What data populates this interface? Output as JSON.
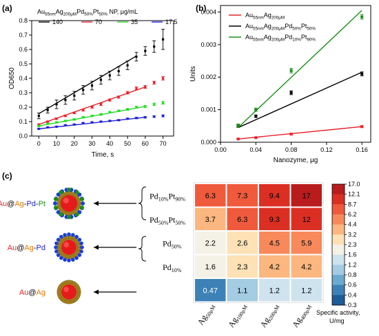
{
  "panels": {
    "a": {
      "label": "(a)"
    },
    "b": {
      "label": "(b)"
    },
    "c": {
      "label": "(c)"
    }
  },
  "colors": {
    "black": "#000000",
    "red": "#e8222a",
    "green": "#22dd22",
    "blue": "#1f1fd6",
    "dark_green": "#1a8f1a"
  },
  "chart_data": [
    {
      "type": "scatter",
      "panel": "a",
      "legend_title": {
        "base": "Au",
        "sub1": "55nm",
        "mid1": "Ag",
        "sub2": "200μM",
        "mid2": "Pd",
        "sub3": "50%",
        "mid3": "Pt",
        "sub4": "50%",
        "tail": " NP, μg/mL"
      },
      "xlabel": "Time, s",
      "ylabel": "OD650",
      "xlim": [
        -4,
        76
      ],
      "ylim": [
        0,
        0.8
      ],
      "xticks": [
        0,
        10,
        20,
        30,
        40,
        50,
        60,
        70
      ],
      "yticks": [
        0.0,
        0.1,
        0.2,
        0.3,
        0.4,
        0.5,
        0.6,
        0.7,
        0.8
      ],
      "ytick_labels": [
        "0.0",
        "0.1",
        "0.2",
        "0.3",
        "0.4",
        "0.5",
        "0.6",
        "0.7",
        "0.8"
      ],
      "series": [
        {
          "name": "140",
          "color": "#000000",
          "x": [
            0,
            5,
            10,
            15,
            20,
            25,
            30,
            35,
            40,
            45,
            50,
            55,
            60,
            65,
            70
          ],
          "y": [
            0.14,
            0.18,
            0.22,
            0.25,
            0.28,
            0.32,
            0.35,
            0.39,
            0.42,
            0.45,
            0.49,
            0.55,
            0.59,
            0.62,
            0.67
          ],
          "err": [
            0.02,
            0.02,
            0.03,
            0.03,
            0.03,
            0.03,
            0.03,
            0.03,
            0.03,
            0.03,
            0.03,
            0.03,
            0.03,
            0.04,
            0.07
          ],
          "fit": [
            [
              0,
              0.155
            ],
            [
              55,
              0.555
            ]
          ]
        },
        {
          "name": "70",
          "color": "#e8222a",
          "x": [
            0,
            5,
            10,
            15,
            20,
            25,
            30,
            35,
            40,
            45,
            50,
            55,
            60,
            65,
            70
          ],
          "y": [
            0.08,
            0.1,
            0.12,
            0.14,
            0.16,
            0.18,
            0.2,
            0.22,
            0.25,
            0.27,
            0.3,
            0.33,
            0.34,
            0.37,
            0.4
          ],
          "err": [
            0.005,
            0.005,
            0.006,
            0.006,
            0.006,
            0.007,
            0.007,
            0.008,
            0.008,
            0.008,
            0.009,
            0.01,
            0.01,
            0.01,
            0.012
          ],
          "fit": [
            [
              0,
              0.08
            ],
            [
              60,
              0.34
            ]
          ]
        },
        {
          "name": "35",
          "color": "#22dd22",
          "x": [
            0,
            5,
            10,
            15,
            20,
            25,
            30,
            35,
            40,
            45,
            50,
            55,
            60,
            65,
            70
          ],
          "y": [
            0.07,
            0.085,
            0.095,
            0.105,
            0.115,
            0.13,
            0.14,
            0.15,
            0.165,
            0.175,
            0.185,
            0.2,
            0.205,
            0.22,
            0.23
          ],
          "err": [
            0.004,
            0.004,
            0.004,
            0.005,
            0.005,
            0.005,
            0.005,
            0.006,
            0.006,
            0.006,
            0.007,
            0.007,
            0.007,
            0.008,
            0.009
          ],
          "fit": [
            [
              0,
              0.07
            ],
            [
              60,
              0.205
            ]
          ]
        },
        {
          "name": "17.5",
          "color": "#1f1fd6",
          "x": [
            0,
            5,
            10,
            15,
            20,
            25,
            30,
            35,
            40,
            45,
            50,
            55,
            60,
            65,
            70
          ],
          "y": [
            0.05,
            0.06,
            0.065,
            0.075,
            0.08,
            0.09,
            0.095,
            0.1,
            0.105,
            0.11,
            0.12,
            0.125,
            0.13,
            0.135,
            0.14
          ],
          "err": [
            0.003,
            0.003,
            0.003,
            0.003,
            0.003,
            0.004,
            0.004,
            0.004,
            0.004,
            0.004,
            0.004,
            0.005,
            0.005,
            0.006,
            0.007
          ],
          "fit": [
            [
              0,
              0.05
            ],
            [
              60,
              0.13
            ]
          ]
        }
      ]
    },
    {
      "type": "scatter",
      "panel": "b",
      "xlabel": "Nanozyme, μg",
      "ylabel": "Units",
      "xlim": [
        0,
        0.17
      ],
      "ylim": [
        0,
        0.0042
      ],
      "xticks": [
        0.0,
        0.04,
        0.08,
        0.12,
        0.16
      ],
      "xtick_labels": [
        "0.00",
        "0.04",
        "0.08",
        "0.12",
        "0.16"
      ],
      "yticks": [
        0.0,
        0.001,
        0.002,
        0.003,
        0.004
      ],
      "ytick_labels": [
        "0.000",
        "0.001",
        "0.002",
        "0.003",
        "0.004"
      ],
      "legend_placement": "top-left",
      "series": [
        {
          "name": {
            "base": "Au",
            "sub1": "55nm",
            "mid1": "Ag",
            "sub2": "200μM",
            "mid2": "",
            "sub3": "",
            "mid3": "",
            "sub4": ""
          },
          "color": "#e8222a",
          "x": [
            0.02,
            0.04,
            0.08,
            0.16
          ],
          "y": [
            0.0001,
            0.00014,
            0.00025,
            0.00048
          ],
          "err": [
            1e-05,
            1e-05,
            2e-05,
            3e-05
          ],
          "fit": [
            [
              0.02,
              0.0001
            ],
            [
              0.16,
              0.00048
            ]
          ]
        },
        {
          "name": {
            "base": "Au",
            "sub1": "55nm",
            "mid1": "Ag",
            "sub2": "200μM",
            "mid2": "Pd",
            "sub3": "50%",
            "mid3": "Pt",
            "sub4": "50%"
          },
          "color": "#000000",
          "x": [
            0.02,
            0.04,
            0.08,
            0.16
          ],
          "y": [
            0.0005,
            0.0008,
            0.00152,
            0.0021
          ],
          "err": [
            4e-05,
            4e-05,
            6e-05,
            6e-05
          ],
          "fit": [
            [
              0.02,
              0.00045
            ],
            [
              0.16,
              0.00215
            ]
          ]
        },
        {
          "name": {
            "base": "Au",
            "sub1": "55nm",
            "mid1": "Ag",
            "sub2": "200μM",
            "mid2": "Pd",
            "sub3": "10%",
            "mid3": "Pt",
            "sub4": "90%"
          },
          "color": "#1a8f1a",
          "x": [
            0.02,
            0.04,
            0.08,
            0.16
          ],
          "y": [
            0.00052,
            0.001,
            0.0022,
            0.00385
          ],
          "err": [
            4e-05,
            5e-05,
            7e-05,
            7e-05
          ],
          "fit": [
            [
              0.02,
              0.00045
            ],
            [
              0.16,
              0.00405
            ]
          ]
        }
      ]
    },
    {
      "type": "heatmap",
      "panel": "c",
      "row_labels": [
        {
          "base": "Pd",
          "sub": "10%",
          "base2": "Pt",
          "sub2": "90%"
        },
        {
          "base": "Pd",
          "sub": "50%",
          "base2": "Pt",
          "sub2": "50%"
        },
        {
          "base": "Pd",
          "sub": "50%",
          "base2": "",
          "sub2": ""
        },
        {
          "base": "Pd",
          "sub": "10%",
          "base2": "",
          "sub2": ""
        },
        {
          "base": "",
          "sub": "",
          "base2": "",
          "sub2": ""
        }
      ],
      "col_labels": [
        {
          "base": "Ag",
          "sub": "50μM"
        },
        {
          "base": "Ag",
          "sub": "100μM"
        },
        {
          "base": "Ag",
          "sub": "200μM"
        },
        {
          "base": "Ag",
          "sub": "400μM"
        }
      ],
      "values": [
        [
          "6.3",
          "7.3",
          "9.4",
          "17"
        ],
        [
          "3.7",
          "6.3",
          "9.3",
          "12"
        ],
        [
          "2.2",
          "2.6",
          "4.5",
          "5.9"
        ],
        [
          "1.6",
          "2.3",
          "4.2",
          "4.2"
        ],
        [
          "0.47",
          "1.1",
          "1.2",
          "1.2"
        ]
      ],
      "colorbar": {
        "ticks": [
          "17.0",
          "12.1",
          "8.7",
          "6.2",
          "4.4",
          "3.2",
          "2.3",
          "1.6",
          "1.2",
          "0.8",
          "0.6",
          "0.4",
          "0.3"
        ],
        "colors": [
          "#b81c1c",
          "#dc2f24",
          "#ef5a3c",
          "#f7895a",
          "#fbb77f",
          "#fde2b6",
          "#f4f1e6",
          "#cfe3ef",
          "#a4cce2",
          "#6daacf",
          "#3d82b6",
          "#1d5d97"
        ],
        "label_line1": "Specific activity,",
        "label_line2": "U/mg"
      }
    }
  ],
  "structures": [
    {
      "label_parts": [
        {
          "t": "Au",
          "c": "#e8222a"
        },
        {
          "t": "@",
          "c": "#000000"
        },
        {
          "t": "Ag",
          "c": "#e07b00"
        },
        {
          "t": "-",
          "c": "#000000"
        },
        {
          "t": "Pd",
          "c": "#1f1fd6"
        },
        {
          "t": "-",
          "c": "#000000"
        },
        {
          "t": "Pt",
          "c": "#1a8f1a"
        }
      ]
    },
    {
      "label_parts": [
        {
          "t": "Au",
          "c": "#e8222a"
        },
        {
          "t": "@",
          "c": "#000000"
        },
        {
          "t": "Ag",
          "c": "#e07b00"
        },
        {
          "t": "-",
          "c": "#000000"
        },
        {
          "t": "Pd",
          "c": "#1f1fd6"
        }
      ]
    },
    {
      "label_parts": [
        {
          "t": "Au",
          "c": "#e8222a"
        },
        {
          "t": "@",
          "c": "#000000"
        },
        {
          "t": "Ag",
          "c": "#e07b00"
        }
      ]
    }
  ]
}
